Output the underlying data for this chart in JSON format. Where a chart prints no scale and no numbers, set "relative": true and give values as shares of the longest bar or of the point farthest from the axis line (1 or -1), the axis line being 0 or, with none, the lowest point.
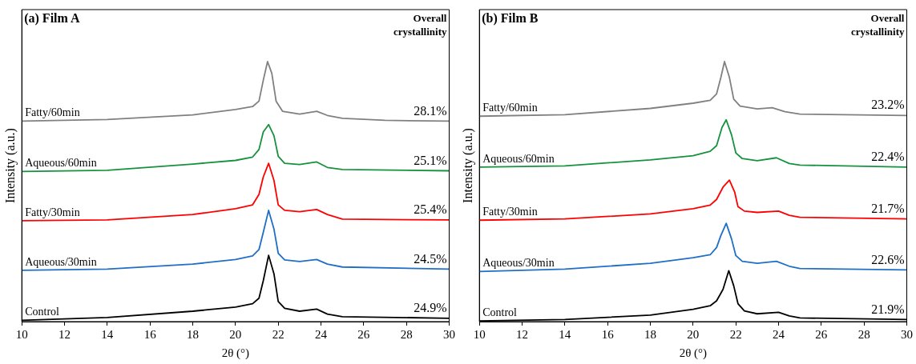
{
  "chart_data": [
    {
      "type": "line",
      "title": "(a) Film A",
      "xlabel": "2θ (°)",
      "ylabel": "Intensity (a.u.)",
      "relative": true,
      "xlim": [
        10,
        30
      ],
      "xticks": [
        10,
        12,
        14,
        16,
        18,
        20,
        22,
        24,
        26,
        28,
        30
      ],
      "grid": false,
      "legend": false,
      "series": [
        {
          "name": "Fatty/60min",
          "color": "#808080",
          "x": [
            10,
            14,
            18,
            20,
            20.8,
            21.1,
            21.3,
            21.5,
            21.7,
            21.9,
            22.2,
            23,
            23.8,
            24.3,
            25,
            27,
            30
          ],
          "values": [
            0.771,
            0.777,
            0.795,
            0.816,
            0.827,
            0.848,
            0.928,
            1,
            0.955,
            0.848,
            0.809,
            0.798,
            0.809,
            0.793,
            0.782,
            0.774,
            0.771
          ]
        },
        {
          "name": "Aqueous/60min",
          "color": "#16923e",
          "x": [
            10,
            14,
            18,
            20,
            20.8,
            21.1,
            21.3,
            21.55,
            21.8,
            22,
            22.3,
            23,
            23.8,
            24.3,
            25,
            30
          ],
          "values": [
            0.577,
            0.582,
            0.606,
            0.62,
            0.633,
            0.662,
            0.729,
            0.758,
            0.715,
            0.636,
            0.609,
            0.604,
            0.614,
            0.593,
            0.585,
            0.58
          ]
        },
        {
          "name": "Fatty/30min",
          "color": "#ff0000",
          "x": [
            10,
            14,
            18,
            20,
            20.8,
            21.1,
            21.3,
            21.55,
            21.8,
            22,
            22.3,
            23,
            23.8,
            24.3,
            25,
            30
          ],
          "values": [
            0.388,
            0.391,
            0.412,
            0.434,
            0.449,
            0.489,
            0.556,
            0.609,
            0.543,
            0.449,
            0.428,
            0.423,
            0.431,
            0.412,
            0.394,
            0.391
          ]
        },
        {
          "name": "Aqueous/30min",
          "color": "#1f6fc6",
          "x": [
            10,
            14,
            18,
            20,
            20.8,
            21.1,
            21.3,
            21.55,
            21.8,
            22,
            22.3,
            23,
            23.8,
            24.3,
            25,
            30
          ],
          "values": [
            0.197,
            0.202,
            0.221,
            0.239,
            0.253,
            0.277,
            0.343,
            0.428,
            0.356,
            0.263,
            0.237,
            0.231,
            0.239,
            0.221,
            0.21,
            0.202
          ]
        },
        {
          "name": "Control",
          "color": "#000000",
          "x": [
            10,
            14,
            18,
            20,
            20.8,
            21.1,
            21.3,
            21.55,
            21.8,
            22,
            22.3,
            23,
            23.8,
            24.3,
            25,
            30
          ],
          "values": [
            0.005,
            0.016,
            0.04,
            0.056,
            0.069,
            0.09,
            0.157,
            0.255,
            0.184,
            0.077,
            0.051,
            0.04,
            0.048,
            0.029,
            0.019,
            0.013
          ]
        }
      ],
      "annotations": [
        "Overall crystallinity",
        "28.1%",
        "25.1%",
        "25.4%",
        "24.5%",
        "24.9%"
      ]
    },
    {
      "type": "line",
      "title": "(b) Film B",
      "xlabel": "2θ (°)",
      "ylabel": "Intensity (a.u.)",
      "relative": true,
      "xlim": [
        10,
        30
      ],
      "xticks": [
        10,
        12,
        14,
        16,
        18,
        20,
        22,
        24,
        26,
        28,
        30
      ],
      "grid": false,
      "legend": false,
      "series": [
        {
          "name": "Fatty/60min",
          "color": "#808080",
          "x": [
            10,
            14,
            18,
            20,
            20.8,
            21.1,
            21.3,
            21.47,
            21.7,
            21.9,
            22.2,
            23,
            23.7,
            24.3,
            25,
            30
          ],
          "values": [
            0.79,
            0.796,
            0.82,
            0.84,
            0.851,
            0.876,
            0.939,
            1,
            0.939,
            0.856,
            0.829,
            0.818,
            0.823,
            0.807,
            0.798,
            0.793
          ]
        },
        {
          "name": "Aqueous/60min",
          "color": "#16923e",
          "x": [
            10,
            14,
            18,
            20,
            20.8,
            21.1,
            21.35,
            21.55,
            21.8,
            22,
            22.3,
            23,
            23.9,
            24.5,
            25,
            30
          ],
          "values": [
            0.594,
            0.599,
            0.622,
            0.638,
            0.655,
            0.677,
            0.746,
            0.776,
            0.718,
            0.649,
            0.627,
            0.619,
            0.63,
            0.608,
            0.602,
            0.594
          ]
        },
        {
          "name": "Fatty/30min",
          "color": "#ff0000",
          "x": [
            10,
            14,
            18,
            20,
            20.8,
            21.1,
            21.4,
            21.7,
            21.95,
            22.1,
            22.4,
            23,
            24,
            24.5,
            25,
            30
          ],
          "values": [
            0.39,
            0.395,
            0.414,
            0.434,
            0.448,
            0.47,
            0.517,
            0.544,
            0.497,
            0.442,
            0.425,
            0.42,
            0.425,
            0.409,
            0.401,
            0.395
          ]
        },
        {
          "name": "Aqueous/30min",
          "color": "#1f6fc6",
          "x": [
            10,
            14,
            18,
            20,
            20.8,
            21.1,
            21.3,
            21.55,
            21.8,
            22,
            22.3,
            23,
            23.9,
            24.5,
            25,
            30
          ],
          "values": [
            0.193,
            0.202,
            0.224,
            0.246,
            0.257,
            0.285,
            0.331,
            0.378,
            0.318,
            0.254,
            0.232,
            0.224,
            0.232,
            0.213,
            0.204,
            0.199
          ]
        },
        {
          "name": "Control",
          "color": "#000000",
          "x": [
            10,
            14,
            18,
            20,
            20.8,
            21.1,
            21.4,
            21.67,
            21.9,
            22.1,
            22.4,
            23,
            24,
            24.5,
            25,
            30
          ],
          "values": [
            0.003,
            0.008,
            0.025,
            0.047,
            0.061,
            0.08,
            0.124,
            0.196,
            0.138,
            0.069,
            0.041,
            0.03,
            0.036,
            0.022,
            0.014,
            0.008
          ]
        }
      ],
      "annotations": [
        "Overall crystallinity",
        "23.2%",
        "22.4%",
        "21.7%",
        "22.6%",
        "21.9%"
      ]
    }
  ]
}
